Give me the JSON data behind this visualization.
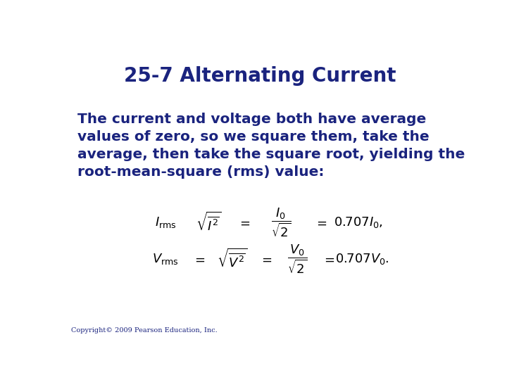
{
  "title": "25-7 Alternating Current",
  "title_color": "#1a237e",
  "title_fontsize": 20,
  "body_text": "The current and voltage both have average\nvalues of zero, so we square them, take the\naverage, then take the square root, yielding the\nroot-mean-square (rms) value:",
  "body_color": "#1a237e",
  "body_fontsize": 14.5,
  "eq1_lhs": "$I_\\mathrm{rms}$",
  "eq1_mid1": "$\\sqrt{\\overline{I^2}}$",
  "eq1_sep1": "$=$",
  "eq1_mid2": "$\\dfrac{I_0}{\\sqrt{2}}$",
  "eq1_sep2": "$=$",
  "eq1_rhs": "$0.707I_0,$",
  "eq2_lhs": "$V_\\mathrm{rms}$",
  "eq2_sep0": "$=$",
  "eq2_mid1": "$\\sqrt{\\overline{V^2}}$",
  "eq2_sep1": "$=$",
  "eq2_mid2": "$\\dfrac{V_0}{\\sqrt{2}}$",
  "eq2_sep2": "$=$",
  "eq2_rhs": "$0.707V_0.$",
  "eq_color": "#000000",
  "eq_fontsize": 13,
  "copyright": "Copyright© 2009 Pearson Education, Inc.",
  "copyright_fontsize": 7,
  "copyright_color": "#1a237e",
  "background_color": "#ffffff"
}
